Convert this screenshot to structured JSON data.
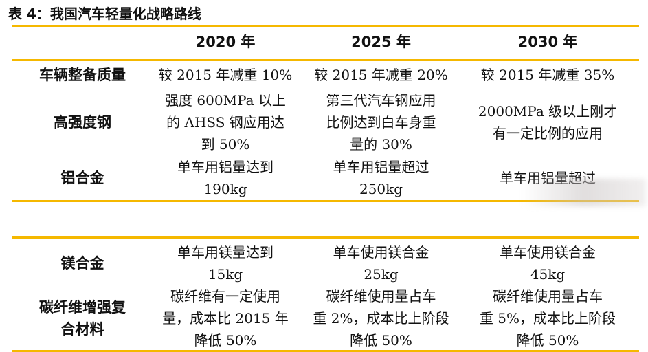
{
  "title": "表 4：我国汽车轻量化战略路线",
  "headers": [
    "",
    "2020 年",
    "2025 年",
    "2030 年"
  ],
  "table1": [
    {
      "label": [
        "车辆整备质量"
      ],
      "c1": [
        "较 2015 年减重 10%"
      ],
      "c2": [
        "较 2015 年减重 20%"
      ],
      "c3": [
        "较 2015 年减重 35%"
      ]
    },
    {
      "label": [
        "高强度钢"
      ],
      "c1": [
        "强度 600MPa 以上",
        "的 AHSS 钢应用达",
        "到 50%"
      ],
      "c2": [
        "第三代汽车钢应用",
        "比例达到白车身重",
        "量的 30%"
      ],
      "c3": [
        "2000MPa 级以上刚才",
        "有一定比例的应用"
      ]
    },
    {
      "label": [
        "铝合金"
      ],
      "c1": [
        "单车用铝量达到",
        "190kg"
      ],
      "c2": [
        "单车用铝量超过",
        "250kg"
      ],
      "c3": [
        "单车用铝量超过"
      ]
    }
  ],
  "table2": [
    {
      "label": [
        "镁合金"
      ],
      "c1": [
        "单车用镁量达到",
        "15kg"
      ],
      "c2": [
        "单车使用镁合金",
        "25kg"
      ],
      "c3": [
        "单车使用镁合金",
        "45kg"
      ]
    },
    {
      "label": [
        "碳纤维增强复",
        "合材料"
      ],
      "c1": [
        "碳纤维有一定使用",
        "量，成本比 2015 年",
        "降低 50%"
      ],
      "c2": [
        "碳纤维使用量占车",
        "重 2%，成本比上阶段",
        "降低 50%"
      ],
      "c3": [
        "碳纤维使用量占车",
        "重 5%，成本比上阶段",
        "降低 50%"
      ]
    }
  ],
  "colors": {
    "rule": "#f5b800"
  }
}
